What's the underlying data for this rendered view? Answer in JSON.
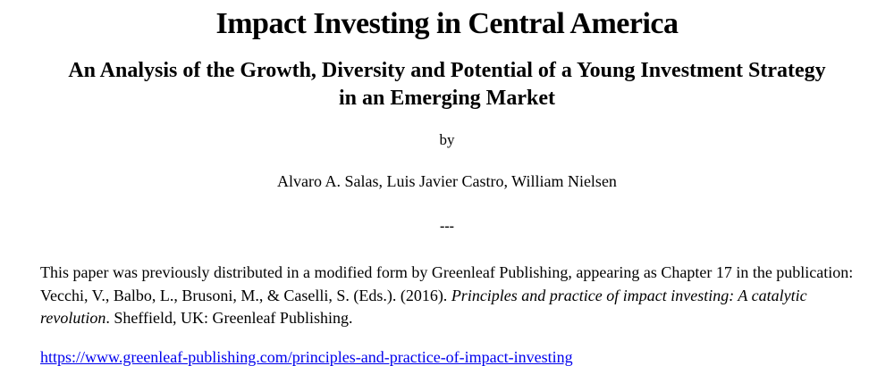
{
  "page": {
    "title": "Impact Investing in Central America",
    "subtitle": "An Analysis of the Growth, Diversity and Potential of a Young Investment Strategy in an Emerging Market",
    "byline_label": "by",
    "authors": "Alvaro A. Salas, Luis Javier Castro, William Nielsen",
    "divider": "---",
    "note": {
      "part1": "This paper was previously distributed in a modified form by Greenleaf Publishing, appearing as Chapter 17 in the publication: Vecchi, V., Balbo, L., Brusoni, M., & Caselli, S. (Eds.). (2016). ",
      "italic": "Principles and practice of impact investing: A catalytic revolution",
      "part2": ". Sheffield, UK: Greenleaf Publishing."
    },
    "link": {
      "text": "https://www.greenleaf-publishing.com/principles-and-practice-of-impact-investing"
    },
    "colors": {
      "background": "#ffffff",
      "text": "#000000",
      "link": "#0000EE"
    }
  }
}
